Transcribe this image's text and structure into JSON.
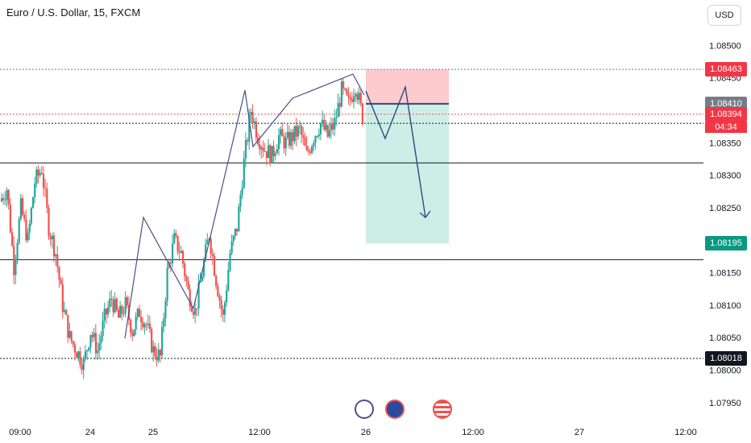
{
  "title": "Euro / U.S. Dollar, 15, FXCM",
  "currency_button": "USD",
  "colors": {
    "up": "#26a69a",
    "down": "#ef5350",
    "loss_zone": "#fccbcd",
    "profit_zone": "#cdeee7",
    "drawing": "#4b4e8a",
    "position_line": "#2a4a7f"
  },
  "chart_data": {
    "type": "candlestick",
    "symbol": "EURUSD",
    "interval": "15",
    "ylim": [
      1.07925,
      1.08545
    ],
    "y_ticks": [
      "1.08500",
      "1.08450",
      "1.08350",
      "1.08300",
      "1.08250",
      "1.08150",
      "1.08100",
      "1.08050",
      "1.08000",
      "1.07950"
    ],
    "x_ticks": [
      "09:00",
      "24",
      "25",
      "12:00",
      "26",
      "12:00",
      "27",
      "12:00"
    ],
    "horizontal_lines": [
      1.08463,
      1.08394,
      1.0838,
      1.08319,
      1.0817,
      1.08018
    ],
    "price_labels": [
      {
        "key": "top_level",
        "value": "1.08463",
        "style": "red"
      },
      {
        "key": "entry",
        "value": "1.08410",
        "style": "gray"
      },
      {
        "key": "last_price",
        "value": "1.08394",
        "style": "red"
      },
      {
        "key": "target",
        "value": "1.08195",
        "style": "green"
      },
      {
        "key": "support",
        "value": "1.08018",
        "style": "black"
      }
    ],
    "countdown": "04:34",
    "short_position": {
      "stop": 1.08463,
      "entry": 1.0841,
      "target": 1.08195
    },
    "candles_path": [
      1.0826,
      1.0828,
      1.0816,
      1.0825,
      1.082,
      1.0829,
      1.0831,
      1.0822,
      1.0818,
      1.081,
      1.0805,
      1.0803,
      1.0801,
      1.0806,
      1.0803,
      1.0808,
      1.0811,
      1.0808,
      1.081,
      1.0806,
      1.0809,
      1.0807,
      1.0803,
      1.0802,
      1.0815,
      1.082,
      1.0818,
      1.0812,
      1.0809,
      1.0815,
      1.0821,
      1.0814,
      1.0808,
      1.0818,
      1.0822,
      1.0832,
      1.084,
      1.0836,
      1.0834,
      1.0833,
      1.0836,
      1.0835,
      1.0836,
      1.0837,
      1.0833,
      1.0836,
      1.0838,
      1.0836,
      1.0838,
      1.0843,
      1.0841,
      1.0844,
      1.0839
    ]
  }
}
